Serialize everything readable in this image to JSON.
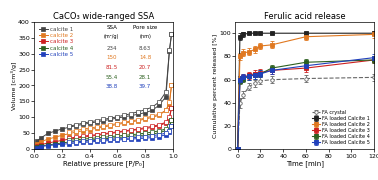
{
  "chart_data": [
    {
      "type": "line",
      "title": "CaCO₃ wide-ranged SSA",
      "x_label": "Relative pressure [P/P₀]",
      "y_label": "Volume [cm³/g]",
      "xlim": [
        0,
        1.0
      ],
      "ylim": [
        0,
        400
      ],
      "xticks": [
        {
          "value": 0,
          "label": "0.0"
        },
        0.2,
        0.4,
        0.6,
        0.8,
        {
          "value": 1.0,
          "label": "1.0"
        }
      ],
      "yticks": [
        0,
        50,
        100,
        150,
        200,
        250,
        300,
        350,
        400
      ],
      "legend": "upper left",
      "series": [
        {
          "name": "calcite 1",
          "color": "#444444",
          "marker": "square",
          "line_style": "solid",
          "x": [
            0.02,
            0.05,
            0.1,
            0.15,
            0.2,
            0.25,
            0.3,
            0.35,
            0.4,
            0.45,
            0.5,
            0.55,
            0.6,
            0.65,
            0.7,
            0.75,
            0.8,
            0.85,
            0.9,
            0.95,
            0.975,
            0.99
          ],
          "values": [
            26,
            36,
            50,
            57,
            64,
            69,
            74,
            78,
            82,
            86,
            90,
            94,
            98,
            102,
            106,
            110,
            115,
            122,
            138,
            165,
            308,
            360
          ]
        },
        {
          "color": "#444444",
          "marker": "open square",
          "line_style": "solid",
          "x": [
            0.99,
            0.975,
            0.95,
            0.9,
            0.85,
            0.8,
            0.75,
            0.7,
            0.65,
            0.6,
            0.55,
            0.5,
            0.45,
            0.4,
            0.35,
            0.3,
            0.25
          ],
          "values": [
            360,
            310,
            180,
            148,
            132,
            124,
            118,
            112,
            107,
            102,
            98,
            94,
            90,
            86,
            82,
            77,
            72
          ]
        },
        {
          "name": "calcite 2",
          "color": "#e07820",
          "marker": "square",
          "line_style": "solid",
          "x": [
            0.02,
            0.05,
            0.1,
            0.15,
            0.2,
            0.25,
            0.3,
            0.35,
            0.4,
            0.45,
            0.5,
            0.55,
            0.6,
            0.65,
            0.7,
            0.75,
            0.8,
            0.85,
            0.9,
            0.95,
            0.975,
            0.99
          ],
          "values": [
            18,
            24,
            32,
            38,
            44,
            49,
            54,
            58,
            62,
            66,
            70,
            74,
            78,
            82,
            86,
            90,
            95,
            100,
            107,
            122,
            142,
            200
          ]
        },
        {
          "color": "#e07820",
          "marker": "open square",
          "line_style": "solid",
          "x": [
            0.99,
            0.975,
            0.95,
            0.9,
            0.85,
            0.8,
            0.75,
            0.7,
            0.65,
            0.6,
            0.55,
            0.5,
            0.45,
            0.4,
            0.35,
            0.3,
            0.25
          ],
          "values": [
            200,
            148,
            122,
            110,
            104,
            98,
            93,
            89,
            85,
            81,
            77,
            74,
            70,
            67,
            63,
            59,
            55
          ]
        },
        {
          "name": "calcite 3",
          "color": "#cc2020",
          "marker": "square",
          "line_style": "solid",
          "x": [
            0.02,
            0.05,
            0.1,
            0.15,
            0.2,
            0.25,
            0.3,
            0.35,
            0.4,
            0.45,
            0.5,
            0.55,
            0.6,
            0.65,
            0.7,
            0.75,
            0.8,
            0.85,
            0.9,
            0.95,
            0.975,
            0.99
          ],
          "values": [
            10,
            15,
            20,
            24,
            28,
            32,
            35,
            38,
            41,
            44,
            47,
            50,
            53,
            56,
            59,
            62,
            65,
            69,
            74,
            83,
            96,
            130
          ]
        },
        {
          "color": "#cc2020",
          "marker": "open square",
          "line_style": "solid",
          "x": [
            0.99,
            0.975,
            0.95,
            0.9,
            0.85,
            0.8,
            0.75,
            0.7,
            0.65,
            0.6,
            0.55,
            0.5,
            0.45,
            0.4,
            0.35,
            0.3,
            0.25
          ],
          "values": [
            130,
            102,
            85,
            77,
            72,
            68,
            64,
            61,
            58,
            55,
            52,
            49,
            46,
            44,
            41,
            38,
            35
          ]
        },
        {
          "name": "calcite 4",
          "color": "#2d6020",
          "marker": "square",
          "line_style": "solid",
          "x": [
            0.02,
            0.05,
            0.1,
            0.15,
            0.2,
            0.25,
            0.3,
            0.35,
            0.4,
            0.45,
            0.5,
            0.55,
            0.6,
            0.65,
            0.7,
            0.75,
            0.8,
            0.85,
            0.9,
            0.95,
            0.975,
            0.99
          ],
          "values": [
            7,
            11,
            14,
            17,
            20,
            23,
            25,
            27,
            29,
            31,
            33,
            35,
            37,
            39,
            41,
            43,
            45,
            48,
            52,
            59,
            68,
            92
          ]
        },
        {
          "color": "#2d6020",
          "marker": "open square",
          "line_style": "solid",
          "x": [
            0.99,
            0.975,
            0.95,
            0.9,
            0.85,
            0.8,
            0.75,
            0.7,
            0.65,
            0.6,
            0.55,
            0.5,
            0.45,
            0.4,
            0.35,
            0.3,
            0.25
          ],
          "values": [
            92,
            74,
            64,
            58,
            54,
            51,
            48,
            46,
            44,
            42,
            40,
            38,
            36,
            34,
            32,
            30,
            28
          ]
        },
        {
          "name": "calcite 5",
          "color": "#2040bb",
          "marker": "square",
          "line_style": "solid",
          "x": [
            0.02,
            0.05,
            0.1,
            0.15,
            0.2,
            0.25,
            0.3,
            0.35,
            0.4,
            0.45,
            0.5,
            0.55,
            0.6,
            0.65,
            0.7,
            0.75,
            0.8,
            0.85,
            0.9,
            0.95,
            0.975,
            0.99
          ],
          "values": [
            5,
            9,
            12,
            14,
            16,
            18,
            20,
            22,
            23,
            25,
            26,
            28,
            29,
            31,
            32,
            34,
            35,
            37,
            40,
            46,
            53,
            72
          ]
        },
        {
          "color": "#2040bb",
          "marker": "open square",
          "line_style": "solid",
          "x": [
            0.99,
            0.975,
            0.95,
            0.9,
            0.85,
            0.8,
            0.75,
            0.7,
            0.65,
            0.6,
            0.55,
            0.5,
            0.45,
            0.4,
            0.35,
            0.3,
            0.25
          ],
          "values": [
            72,
            59,
            51,
            46,
            43,
            40,
            38,
            36,
            34,
            33,
            31,
            30,
            28,
            27,
            25,
            24,
            22
          ]
        }
      ],
      "table": {
        "headers": [
          "SSA",
          "Pore size"
        ],
        "units": [
          "(m²/g)",
          "(nm)"
        ],
        "rows": [
          [
            234,
            8.63
          ],
          [
            150,
            14.8
          ],
          [
            81.5,
            20.7
          ],
          [
            55.4,
            28.1
          ],
          [
            38.8,
            39.7
          ]
        ],
        "colors": [
          "#444444",
          "#e07820",
          "#cc2020",
          "#2d6020",
          "#2040bb"
        ]
      }
    },
    {
      "type": "line",
      "title": "Ferulic acid release",
      "x_label": "Time [min]",
      "y_label": "Cumulative percent released [%]",
      "xlim": [
        -2,
        120
      ],
      "ylim": [
        0,
        110
      ],
      "xticks": [
        0,
        20,
        40,
        60,
        80,
        100,
        120
      ],
      "yticks": [
        0,
        20,
        40,
        60,
        80,
        100
      ],
      "legend": "lower right",
      "x": [
        0,
        2,
        5,
        10,
        15,
        20,
        30,
        60,
        120
      ],
      "series": [
        {
          "name": "FA crystal",
          "color": "#666666",
          "marker": "open circle",
          "line_style": "dashed",
          "values": [
            0,
            40,
            47,
            54,
            57,
            59,
            60,
            61,
            62
          ],
          "errors": [
            0,
            4,
            3,
            3,
            3,
            3,
            3,
            3,
            3
          ]
        },
        {
          "name": "FA loaded Calcite 1",
          "color": "#222222",
          "marker": "square",
          "line_style": "solid",
          "values": [
            0,
            97,
            99,
            100,
            100,
            100,
            100,
            100,
            100
          ],
          "errors": [
            0,
            3,
            2,
            1,
            1,
            1,
            1,
            1,
            1
          ]
        },
        {
          "name": "FA loaded Calcite 2",
          "color": "#e07820",
          "marker": "square",
          "line_style": "solid",
          "values": [
            0,
            80,
            83,
            84,
            86,
            89,
            90,
            97,
            99
          ],
          "errors": [
            0,
            3,
            3,
            3,
            3,
            3,
            3,
            3,
            3
          ]
        },
        {
          "name": "FA loaded Calcite 3",
          "color": "#cc2020",
          "marker": "square",
          "line_style": "solid",
          "values": [
            0,
            60,
            62,
            64,
            65,
            66,
            68,
            70,
            77
          ],
          "errors": [
            0,
            3,
            3,
            3,
            3,
            3,
            3,
            3,
            3
          ]
        },
        {
          "name": "FA loaded Calcite 4",
          "color": "#2d6020",
          "marker": "square",
          "line_style": "solid",
          "values": [
            0,
            59,
            61,
            63,
            64,
            65,
            70,
            75,
            77
          ],
          "errors": [
            0,
            3,
            3,
            3,
            3,
            3,
            3,
            3,
            3
          ]
        },
        {
          "name": "FA loaded Calcite 5",
          "color": "#2040bb",
          "marker": "square",
          "line_style": "solid",
          "values": [
            0,
            60,
            62,
            63,
            64,
            65,
            68,
            72,
            79
          ],
          "errors": [
            0,
            3,
            3,
            3,
            3,
            3,
            3,
            3,
            3
          ]
        }
      ]
    }
  ]
}
